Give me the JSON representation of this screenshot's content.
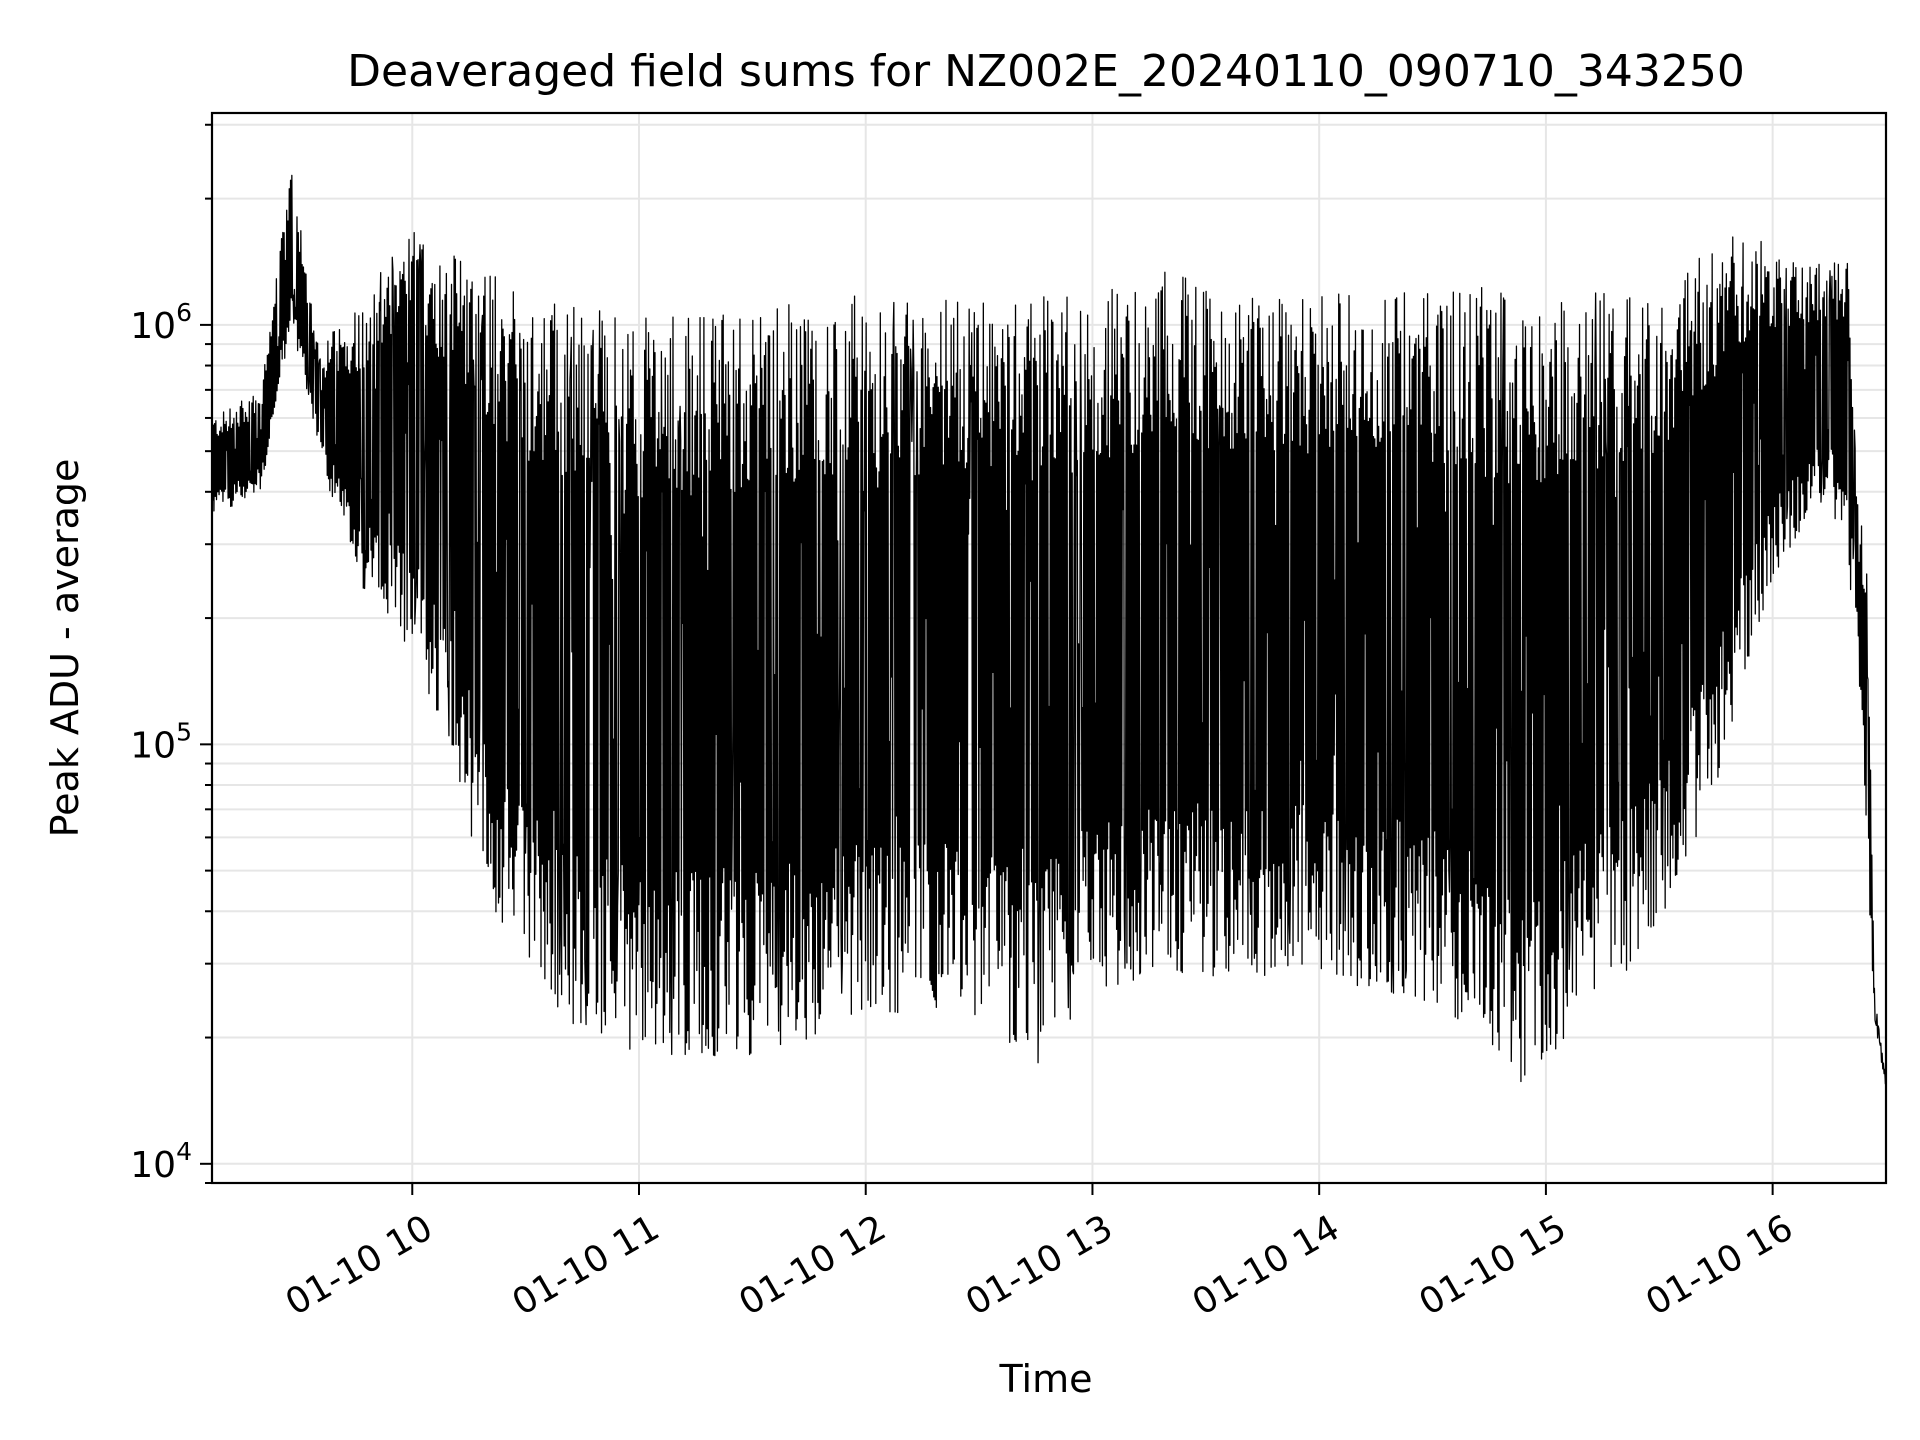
{
  "chart_data": {
    "type": "line",
    "title": "Deaveraged field sums for NZ002E_20240110_090710_343250",
    "xlabel": "Time",
    "ylabel": "Peak ADU - average",
    "yscale": "log",
    "ylim": [
      9000,
      3200000
    ],
    "xlim": [
      "2024-01-10 09:07:00",
      "2024-01-10 16:30:00"
    ],
    "grid": true,
    "x_ticks": [
      {
        "value": "2024-01-10 10:00",
        "label": "01-10 10"
      },
      {
        "value": "2024-01-10 11:00",
        "label": "01-10 11"
      },
      {
        "value": "2024-01-10 12:00",
        "label": "01-10 12"
      },
      {
        "value": "2024-01-10 13:00",
        "label": "01-10 13"
      },
      {
        "value": "2024-01-10 14:00",
        "label": "01-10 14"
      },
      {
        "value": "2024-01-10 15:00",
        "label": "01-10 15"
      },
      {
        "value": "2024-01-10 16:00",
        "label": "01-10 16"
      }
    ],
    "y_ticks": [
      {
        "value": 10000,
        "base": "10",
        "exp": "4"
      },
      {
        "value": 100000,
        "base": "10",
        "exp": "5"
      },
      {
        "value": 1000000,
        "base": "10",
        "exp": "6"
      }
    ],
    "series": [
      {
        "color": "#000000",
        "upper_envelope": [
          {
            "t": "2024-01-10 09:07",
            "y": 600000
          },
          {
            "t": "2024-01-10 09:20",
            "y": 700000
          },
          {
            "t": "2024-01-10 09:28",
            "y": 2400000
          },
          {
            "t": "2024-01-10 09:35",
            "y": 900000
          },
          {
            "t": "2024-01-10 09:45",
            "y": 1100000
          },
          {
            "t": "2024-01-10 10:00",
            "y": 1700000
          },
          {
            "t": "2024-01-10 10:15",
            "y": 1500000
          },
          {
            "t": "2024-01-10 10:30",
            "y": 1200000
          },
          {
            "t": "2024-01-10 11:00",
            "y": 1050000
          },
          {
            "t": "2024-01-10 11:30",
            "y": 1100000
          },
          {
            "t": "2024-01-10 12:00",
            "y": 1200000
          },
          {
            "t": "2024-01-10 12:30",
            "y": 1150000
          },
          {
            "t": "2024-01-10 13:00",
            "y": 1200000
          },
          {
            "t": "2024-01-10 13:20",
            "y": 1400000
          },
          {
            "t": "2024-01-10 13:40",
            "y": 1150000
          },
          {
            "t": "2024-01-10 14:00",
            "y": 1250000
          },
          {
            "t": "2024-01-10 14:30",
            "y": 1250000
          },
          {
            "t": "2024-01-10 15:00",
            "y": 1200000
          },
          {
            "t": "2024-01-10 15:30",
            "y": 1200000
          },
          {
            "t": "2024-01-10 15:50",
            "y": 1700000
          },
          {
            "t": "2024-01-10 16:10",
            "y": 1400000
          },
          {
            "t": "2024-01-10 16:20",
            "y": 1500000
          },
          {
            "t": "2024-01-10 16:22",
            "y": 500000
          },
          {
            "t": "2024-01-10 16:25",
            "y": 250000
          },
          {
            "t": "2024-01-10 16:27",
            "y": 25000
          },
          {
            "t": "2024-01-10 16:30",
            "y": 16000
          }
        ],
        "lower_envelope": [
          {
            "t": "2024-01-10 09:07",
            "y": 350000
          },
          {
            "t": "2024-01-10 09:20",
            "y": 400000
          },
          {
            "t": "2024-01-10 09:28",
            "y": 1000000
          },
          {
            "t": "2024-01-10 09:35",
            "y": 500000
          },
          {
            "t": "2024-01-10 09:45",
            "y": 250000
          },
          {
            "t": "2024-01-10 10:00",
            "y": 160000
          },
          {
            "t": "2024-01-10 10:10",
            "y": 100000
          },
          {
            "t": "2024-01-10 10:20",
            "y": 40000
          },
          {
            "t": "2024-01-10 10:40",
            "y": 22000
          },
          {
            "t": "2024-01-10 11:00",
            "y": 18000
          },
          {
            "t": "2024-01-10 11:30",
            "y": 18000
          },
          {
            "t": "2024-01-10 12:00",
            "y": 22000
          },
          {
            "t": "2024-01-10 12:30",
            "y": 22000
          },
          {
            "t": "2024-01-10 12:45",
            "y": 17000
          },
          {
            "t": "2024-01-10 13:00",
            "y": 26000
          },
          {
            "t": "2024-01-10 13:30",
            "y": 28000
          },
          {
            "t": "2024-01-10 14:00",
            "y": 28000
          },
          {
            "t": "2024-01-10 14:30",
            "y": 24000
          },
          {
            "t": "2024-01-10 14:55",
            "y": 15000
          },
          {
            "t": "2024-01-10 15:10",
            "y": 22000
          },
          {
            "t": "2024-01-10 15:30",
            "y": 35000
          },
          {
            "t": "2024-01-10 15:45",
            "y": 80000
          },
          {
            "t": "2024-01-10 16:00",
            "y": 250000
          },
          {
            "t": "2024-01-10 16:15",
            "y": 400000
          },
          {
            "t": "2024-01-10 16:22",
            "y": 200000
          },
          {
            "t": "2024-01-10 16:27",
            "y": 22000
          },
          {
            "t": "2024-01-10 16:30",
            "y": 15000
          }
        ]
      }
    ]
  }
}
